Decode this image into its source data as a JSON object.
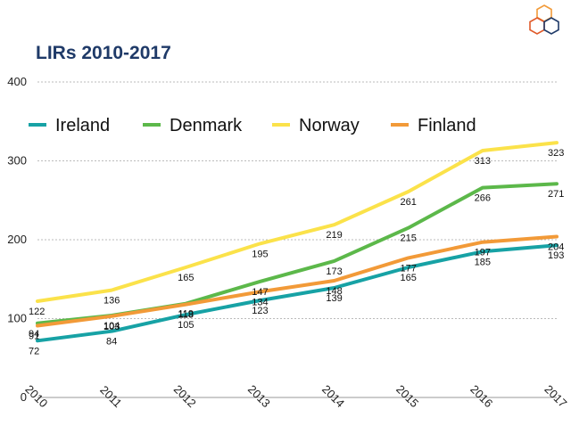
{
  "chart_data": {
    "type": "line",
    "title": "LIRs 2010-2017",
    "x": [
      "2010",
      "2011",
      "2012",
      "2013",
      "2014",
      "2015",
      "2016",
      "2017"
    ],
    "ylim": [
      0,
      400
    ],
    "yticks": [
      "0",
      "100",
      "200",
      "300",
      "400"
    ],
    "grid": true,
    "legend": "top",
    "series": [
      {
        "name": "Ireland",
        "color": "#17a2a5",
        "values": [
          72,
          84,
          105,
          123,
          139,
          165,
          185,
          193
        ]
      },
      {
        "name": "Denmark",
        "color": "#5cb84a",
        "values": [
          94,
          104,
          119,
          147,
          173,
          215,
          266,
          271
        ]
      },
      {
        "name": "Norway",
        "color": "#fbe24a",
        "values": [
          122,
          136,
          165,
          195,
          219,
          261,
          313,
          323
        ]
      },
      {
        "name": "Finland",
        "color": "#f29a38",
        "values": [
          91,
          103,
          118,
          134,
          148,
          177,
          197,
          204
        ]
      }
    ]
  }
}
